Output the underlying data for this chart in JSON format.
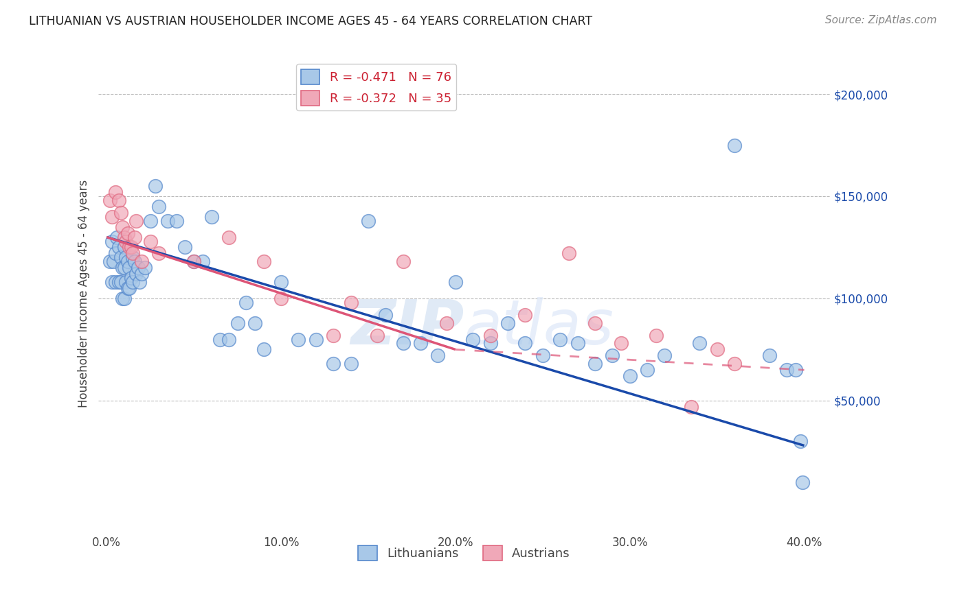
{
  "title": "LITHUANIAN VS AUSTRIAN HOUSEHOLDER INCOME AGES 45 - 64 YEARS CORRELATION CHART",
  "source": "Source: ZipAtlas.com",
  "ylabel": "Householder Income Ages 45 - 64 years",
  "xlabel_ticks": [
    "0.0%",
    "10.0%",
    "20.0%",
    "30.0%",
    "40.0%"
  ],
  "xlabel_vals": [
    0.0,
    10.0,
    20.0,
    30.0,
    40.0
  ],
  "ytick_labels": [
    "$50,000",
    "$100,000",
    "$150,000",
    "$200,000"
  ],
  "ytick_vals": [
    50000,
    100000,
    150000,
    200000
  ],
  "xlim": [
    -0.5,
    41.5
  ],
  "ylim": [
    -15000,
    220000
  ],
  "blue_R": -0.471,
  "blue_N": 76,
  "pink_R": -0.372,
  "pink_N": 35,
  "blue_color": "#a8c8e8",
  "blue_edge": "#5588cc",
  "pink_color": "#f0a8b8",
  "pink_edge": "#e06880",
  "blue_line_color": "#1a4aaa",
  "pink_line_color": "#dd5577",
  "grid_color": "#bbbbbb",
  "background_color": "#ffffff",
  "title_color": "#222222",
  "axis_label_color": "#444444",
  "blue_line_y0": 130000,
  "blue_line_y1": 28000,
  "pink_line_solid_x0": 0,
  "pink_line_solid_x1": 20,
  "pink_line_y0": 130000,
  "pink_line_y1": 75000,
  "pink_line_dash_x0": 20,
  "pink_line_dash_x1": 40,
  "pink_line_dash_y0": 75000,
  "pink_line_dash_y1": 65000,
  "blue_x": [
    0.2,
    0.3,
    0.3,
    0.4,
    0.5,
    0.5,
    0.6,
    0.7,
    0.7,
    0.8,
    0.8,
    0.9,
    0.9,
    1.0,
    1.0,
    1.0,
    1.1,
    1.1,
    1.2,
    1.2,
    1.3,
    1.3,
    1.4,
    1.5,
    1.5,
    1.6,
    1.7,
    1.8,
    1.9,
    2.0,
    2.2,
    2.5,
    2.8,
    3.0,
    3.5,
    4.0,
    4.5,
    5.0,
    5.5,
    6.0,
    6.5,
    7.0,
    7.5,
    8.0,
    8.5,
    9.0,
    10.0,
    11.0,
    12.0,
    13.0,
    14.0,
    15.0,
    16.0,
    17.0,
    18.0,
    19.0,
    20.0,
    21.0,
    22.0,
    23.0,
    24.0,
    25.0,
    26.0,
    27.0,
    28.0,
    29.0,
    30.0,
    31.0,
    32.0,
    34.0,
    36.0,
    38.0,
    39.0,
    39.5,
    39.8,
    39.9
  ],
  "blue_y": [
    118000,
    128000,
    108000,
    118000,
    122000,
    108000,
    130000,
    125000,
    108000,
    120000,
    108000,
    115000,
    100000,
    125000,
    115000,
    100000,
    120000,
    108000,
    118000,
    105000,
    115000,
    105000,
    110000,
    120000,
    108000,
    118000,
    112000,
    115000,
    108000,
    112000,
    115000,
    138000,
    155000,
    145000,
    138000,
    138000,
    125000,
    118000,
    118000,
    140000,
    80000,
    80000,
    88000,
    98000,
    88000,
    75000,
    108000,
    80000,
    80000,
    68000,
    68000,
    138000,
    92000,
    78000,
    78000,
    72000,
    108000,
    80000,
    78000,
    88000,
    78000,
    72000,
    80000,
    78000,
    68000,
    72000,
    62000,
    65000,
    72000,
    78000,
    175000,
    72000,
    65000,
    65000,
    30000,
    10000
  ],
  "pink_x": [
    0.2,
    0.3,
    0.5,
    0.7,
    0.8,
    0.9,
    1.0,
    1.1,
    1.2,
    1.3,
    1.4,
    1.5,
    1.6,
    1.7,
    2.0,
    2.5,
    3.0,
    5.0,
    7.0,
    9.0,
    10.0,
    13.0,
    14.0,
    15.5,
    17.0,
    19.5,
    22.0,
    24.0,
    26.5,
    28.0,
    29.5,
    31.5,
    33.5,
    35.0,
    36.0
  ],
  "pink_y": [
    148000,
    140000,
    152000,
    148000,
    142000,
    135000,
    130000,
    128000,
    132000,
    125000,
    125000,
    122000,
    130000,
    138000,
    118000,
    128000,
    122000,
    118000,
    130000,
    118000,
    100000,
    82000,
    98000,
    82000,
    118000,
    88000,
    82000,
    92000,
    122000,
    88000,
    78000,
    82000,
    47000,
    75000,
    68000
  ]
}
